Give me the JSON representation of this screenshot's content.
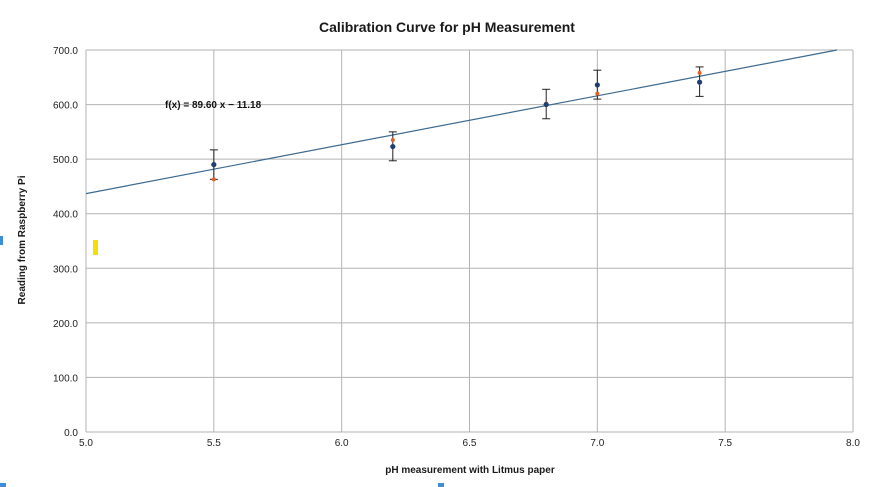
{
  "chart_data": {
    "type": "scatter",
    "title": "Calibration Curve for pH Measurement",
    "xlabel": "pH measurement with Litmus paper",
    "ylabel": "Reading from Raspberry Pi",
    "xlim": [
      5.0,
      8.0
    ],
    "ylim": [
      0,
      700
    ],
    "x_ticks": [
      "5.0",
      "5.5",
      "6.0",
      "6.5",
      "7.0",
      "7.5",
      "8.0"
    ],
    "y_ticks": [
      "0.0",
      "100.0",
      "200.0",
      "300.0",
      "400.0",
      "500.0",
      "600.0",
      "700.0"
    ],
    "x_tick_values": [
      5.0,
      5.5,
      6.0,
      6.5,
      7.0,
      7.5,
      8.0
    ],
    "y_tick_values": [
      0,
      100,
      200,
      300,
      400,
      500,
      600,
      700
    ],
    "grid": true,
    "series": [
      {
        "color": "#1f3f6e",
        "points": [
          {
            "x": 5.5,
            "y": 490,
            "err_low": 463,
            "err_high": 517
          },
          {
            "x": 6.2,
            "y": 523,
            "err_low": 497,
            "err_high": 550
          },
          {
            "x": 6.8,
            "y": 600,
            "err_low": 574,
            "err_high": 628
          },
          {
            "x": 7.0,
            "y": 636,
            "err_low": 610,
            "err_high": 663
          },
          {
            "x": 7.4,
            "y": 641,
            "err_low": 615,
            "err_high": 669
          }
        ]
      },
      {
        "color": "#e0602a",
        "points": [
          {
            "x": 5.5,
            "y": 463
          },
          {
            "x": 6.2,
            "y": 535
          },
          {
            "x": 6.8,
            "y": 602
          },
          {
            "x": 7.0,
            "y": 620
          },
          {
            "x": 7.4,
            "y": 658
          }
        ]
      }
    ],
    "trendline": {
      "slope": 89.6,
      "intercept": -11.18,
      "color": "#3d6a8f",
      "equation": "f(x) = 89.60 x − 11.18"
    },
    "annotations": [
      {
        "color": "#f2e000"
      }
    ]
  }
}
